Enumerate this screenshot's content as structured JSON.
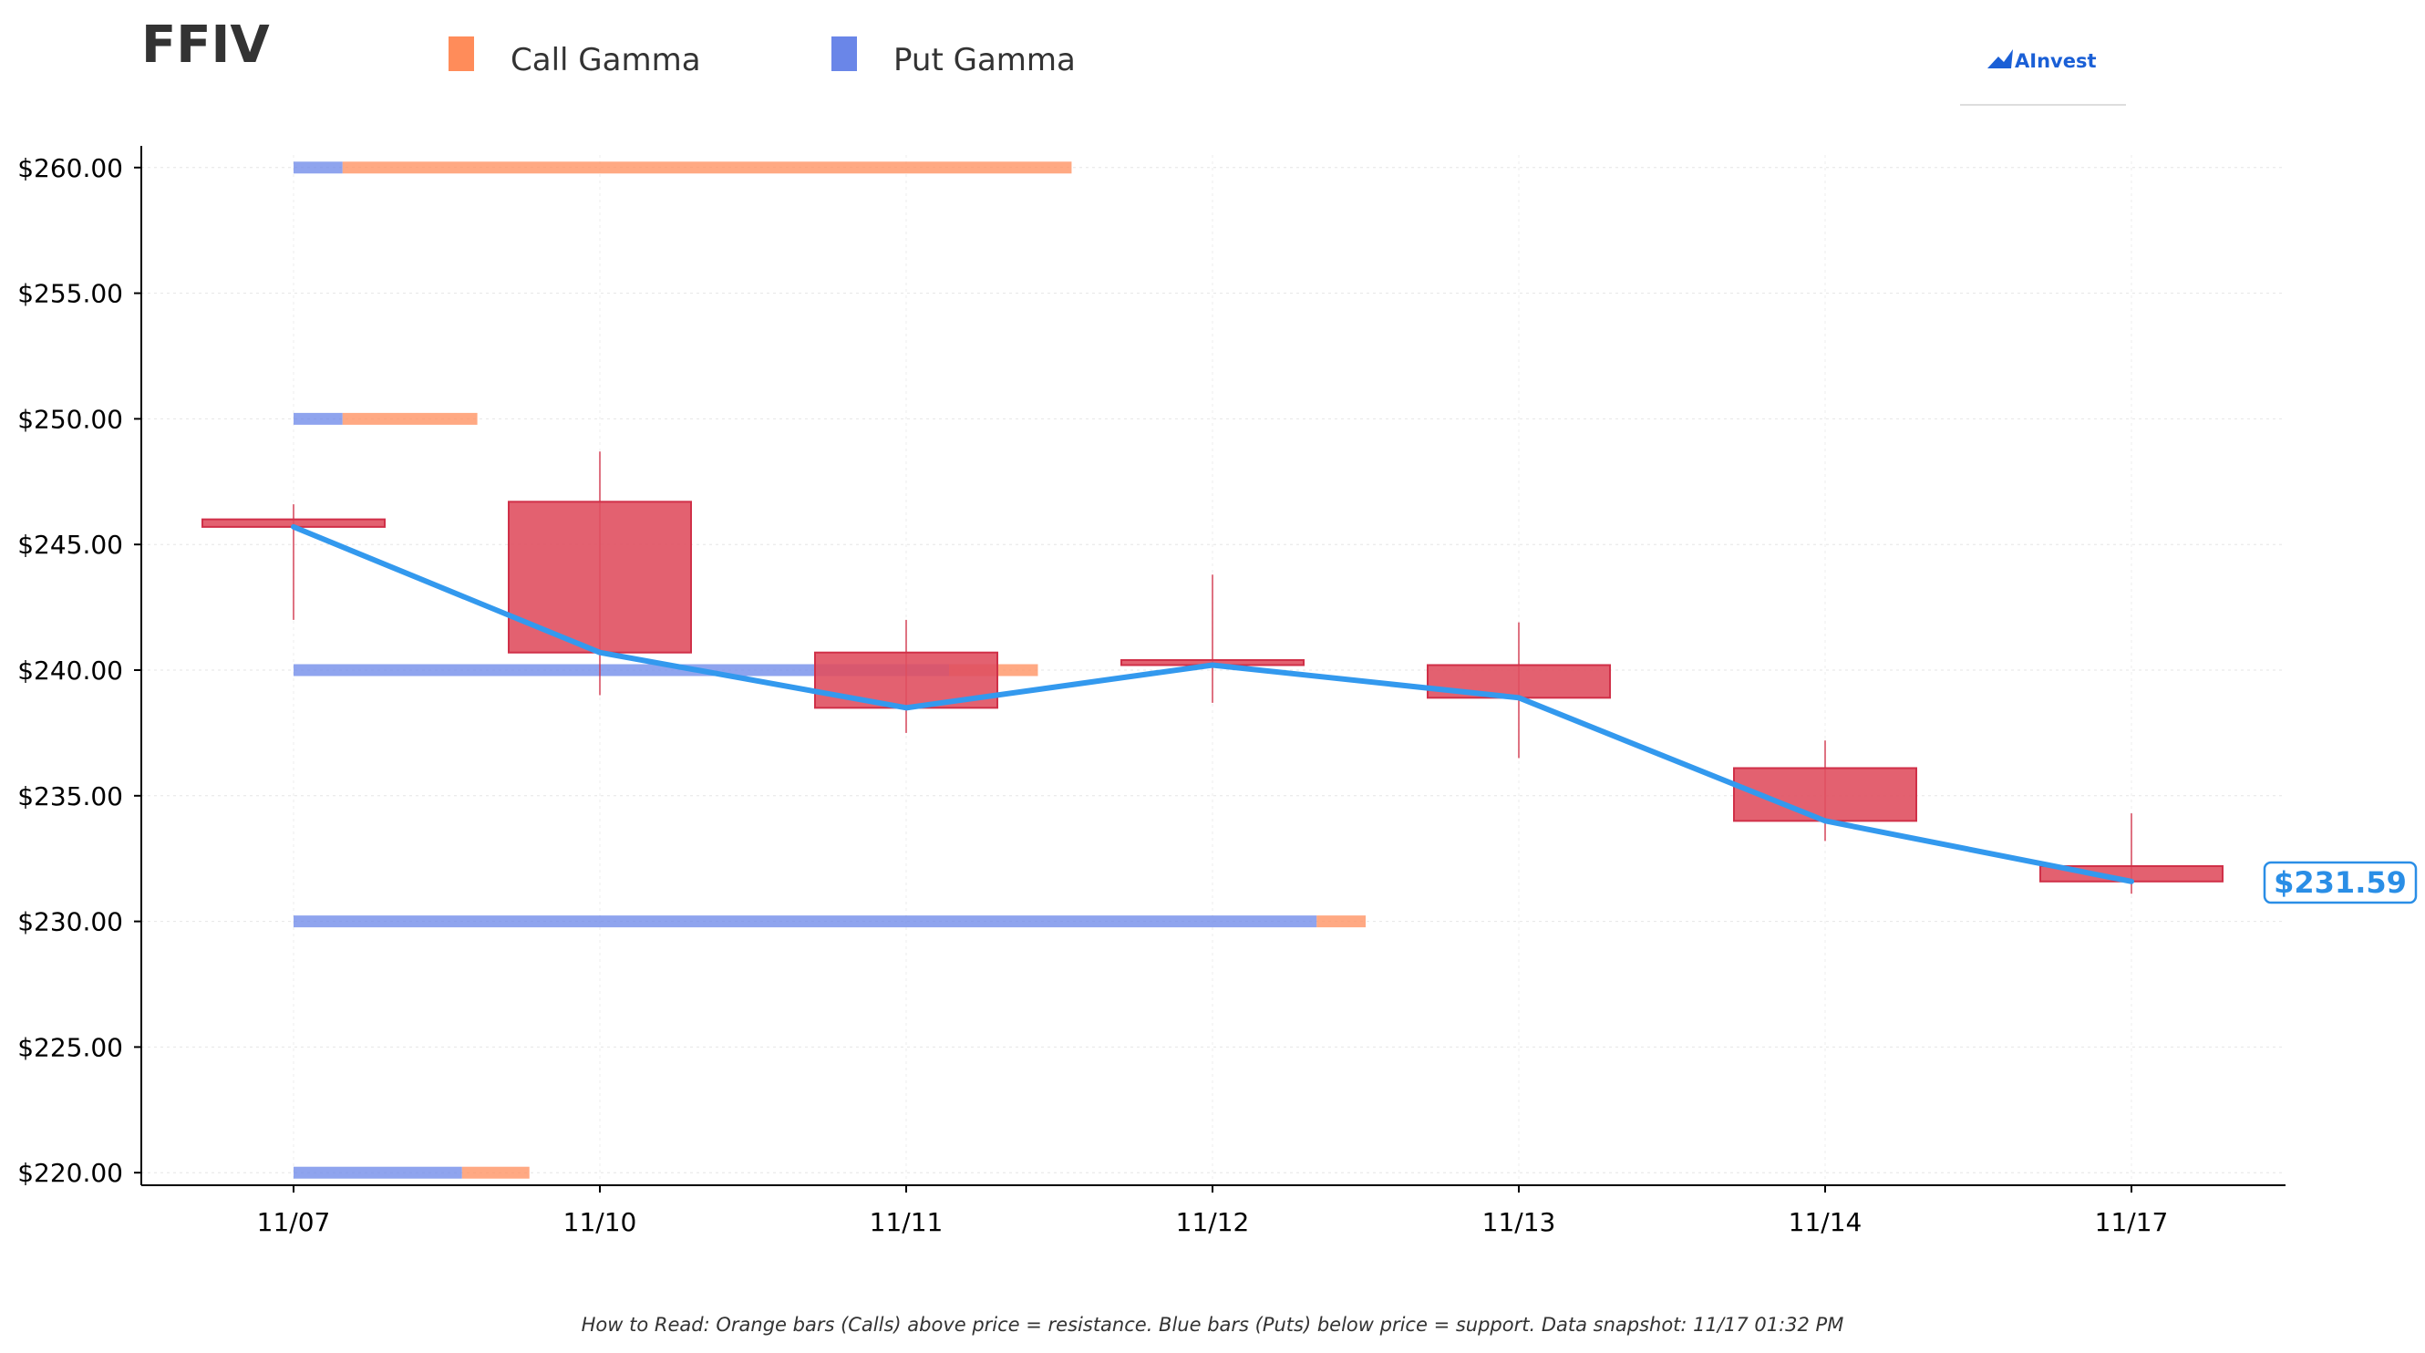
{
  "ticker": "FFIV",
  "logo": {
    "text": "AInvest",
    "color": "#1a5fd6"
  },
  "footer_note": "How to Read: Orange bars (Calls) above price = resistance. Blue bars (Puts) below price = support. Data snapshot: 11/17 01:32 PM",
  "current_price_label": "$231.59",
  "colors": {
    "call": "#ff8c5a",
    "put": "#6a86e8",
    "candle": "#e05060",
    "candle_edge": "#d03048",
    "line": "#3399ee",
    "price_label": "#2a8ee6"
  },
  "chart_data": {
    "type": "candlestick-gamma",
    "categories": [
      "11/07",
      "11/10",
      "11/11",
      "11/12",
      "11/13",
      "11/14",
      "11/17"
    ],
    "ylim": [
      219.5,
      260.5
    ],
    "yticks": [
      220,
      225,
      230,
      235,
      240,
      245,
      250,
      255,
      260
    ],
    "ytick_labels": [
      "$220.00",
      "$225.00",
      "$230.00",
      "$235.00",
      "$240.00",
      "$245.00",
      "$250.00",
      "$255.00",
      "$260.00"
    ],
    "grid": true,
    "legend": [
      {
        "name": "Call Gamma",
        "color": "#ff8c5a"
      },
      {
        "name": "Put Gamma",
        "color": "#6a86e8"
      }
    ],
    "candles": [
      {
        "date": "11/07",
        "open": 246.0,
        "high": 246.6,
        "low": 242.0,
        "close": 245.7
      },
      {
        "date": "11/10",
        "open": 246.7,
        "high": 248.7,
        "low": 239.0,
        "close": 240.7
      },
      {
        "date": "11/11",
        "open": 240.7,
        "high": 242.0,
        "low": 237.5,
        "close": 238.5
      },
      {
        "date": "11/12",
        "open": 240.4,
        "high": 243.8,
        "low": 238.7,
        "close": 240.2
      },
      {
        "date": "11/13",
        "open": 240.2,
        "high": 241.9,
        "low": 236.5,
        "close": 238.9
      },
      {
        "date": "11/14",
        "open": 236.1,
        "high": 237.2,
        "low": 233.2,
        "close": 234.0
      },
      {
        "date": "11/17",
        "open": 232.2,
        "high": 234.3,
        "low": 231.1,
        "close": 231.59
      }
    ],
    "close_line": [
      245.7,
      240.7,
      238.5,
      240.2,
      238.9,
      234.0,
      231.59
    ],
    "gamma_levels": [
      {
        "strike": 260,
        "put": 0.16,
        "call": 2.38
      },
      {
        "strike": 250,
        "put": 0.16,
        "call": 0.44
      },
      {
        "strike": 240,
        "put": 2.14,
        "call": 0.29
      },
      {
        "strike": 230,
        "put": 3.34,
        "call": 0.16
      },
      {
        "strike": 220,
        "put": 0.55,
        "call": 0.22
      }
    ]
  }
}
